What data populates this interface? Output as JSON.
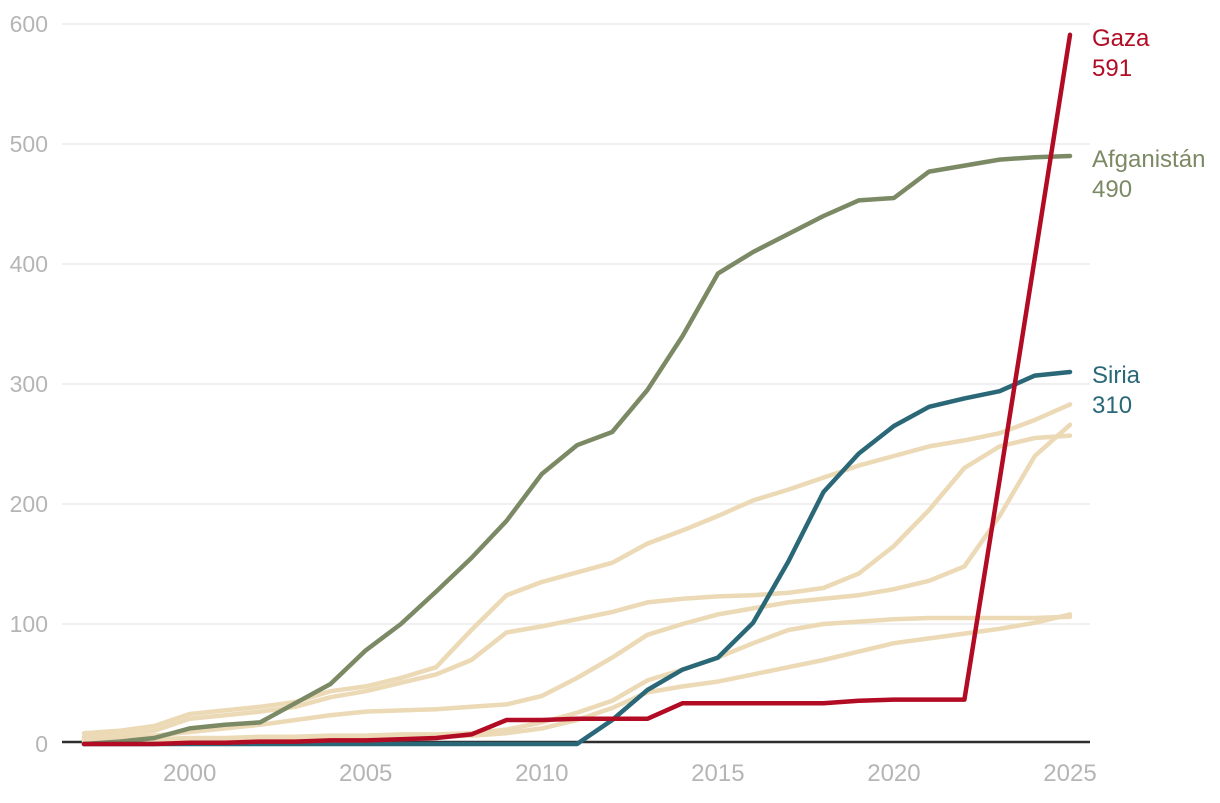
{
  "chart_data": {
    "type": "line",
    "title": "",
    "grid": "horizontal",
    "xlim": [
      1997,
      2025
    ],
    "ylim": [
      0,
      600
    ],
    "xticks": [
      2000,
      2005,
      2010,
      2015,
      2020,
      2025
    ],
    "yticks": [
      0,
      100,
      200,
      300,
      400,
      500,
      600
    ],
    "legend_position": "right-end-of-line",
    "x": [
      1997,
      1998,
      1999,
      2000,
      2001,
      2002,
      2003,
      2004,
      2005,
      2006,
      2007,
      2008,
      2009,
      2010,
      2011,
      2012,
      2013,
      2014,
      2015,
      2016,
      2017,
      2018,
      2019,
      2020,
      2021,
      2022,
      2023,
      2024,
      2025
    ],
    "series": [
      {
        "name": "context-line-1",
        "label": null,
        "color": "#ecd9b5",
        "width": 4.5,
        "values": [
          9,
          11,
          15,
          25,
          28,
          31,
          35,
          44,
          48,
          55,
          64,
          95,
          124,
          135,
          143,
          151,
          167,
          178,
          190,
          203,
          212,
          222,
          232,
          240,
          248,
          253,
          259,
          270,
          283
        ]
      },
      {
        "name": "context-line-2",
        "label": null,
        "color": "#ecd9b5",
        "width": 4.5,
        "values": [
          6,
          8,
          11,
          21,
          24,
          27,
          31,
          39,
          44,
          51,
          58,
          70,
          93,
          98,
          104,
          110,
          118,
          121,
          123,
          124,
          126,
          130,
          142,
          165,
          195,
          230,
          248,
          255,
          257
        ]
      },
      {
        "name": "context-line-3",
        "label": null,
        "color": "#ecd9b5",
        "width": 4.5,
        "values": [
          4,
          5,
          7,
          10,
          13,
          16,
          20,
          24,
          27,
          28,
          29,
          31,
          33,
          40,
          55,
          72,
          91,
          100,
          108,
          113,
          118,
          121,
          124,
          129,
          136,
          148,
          190,
          240,
          266
        ]
      },
      {
        "name": "context-line-4",
        "label": null,
        "color": "#ecd9b5",
        "width": 4.5,
        "values": [
          2,
          3,
          4,
          5,
          5,
          6,
          6,
          7,
          7,
          8,
          8,
          9,
          12,
          18,
          26,
          36,
          53,
          62,
          72,
          84,
          95,
          100,
          102,
          104,
          105,
          105,
          105,
          105,
          106
        ]
      },
      {
        "name": "context-line-5",
        "label": null,
        "color": "#ecd9b5",
        "width": 4.5,
        "values": [
          1,
          2,
          2,
          3,
          3,
          4,
          4,
          5,
          5,
          6,
          6,
          7,
          9,
          13,
          20,
          30,
          43,
          48,
          52,
          58,
          64,
          70,
          77,
          84,
          88,
          92,
          96,
          101,
          108
        ]
      },
      {
        "name": "afganistan",
        "label": "Afganistán",
        "label_value": "490",
        "color": "#7b8a65",
        "width": 4.5,
        "values": [
          0,
          2,
          5,
          13,
          16,
          18,
          34,
          50,
          78,
          100,
          127,
          155,
          186,
          225,
          249,
          260,
          295,
          340,
          392,
          410,
          425,
          440,
          453,
          455,
          477,
          482,
          487,
          489,
          490
        ]
      },
      {
        "name": "siria",
        "label": "Siria",
        "label_value": "310",
        "color": "#2a6878",
        "width": 4.5,
        "values": [
          0,
          0,
          0,
          0,
          0,
          0,
          0,
          0,
          0,
          0,
          0,
          0,
          0,
          0,
          0,
          20,
          45,
          62,
          72,
          101,
          152,
          210,
          242,
          265,
          281,
          288,
          294,
          307,
          310
        ]
      },
      {
        "name": "gaza",
        "label": "Gaza",
        "label_value": "591",
        "color": "#b20b24",
        "width": 4.5,
        "values": [
          0,
          0,
          0,
          1,
          1,
          2,
          2,
          3,
          3,
          4,
          5,
          8,
          20,
          20,
          21,
          21,
          21,
          34,
          34,
          34,
          34,
          34,
          36,
          37,
          37,
          37,
          220,
          405,
          591
        ]
      }
    ]
  },
  "colors": {
    "background": "#ffffff",
    "grid": "#ebebeb",
    "axis": "#2e2e2e",
    "tick_text": "#b5b5b5",
    "context_line": "#ecd9b5",
    "gaza": "#b20b24",
    "afganistan": "#7b8a65",
    "siria": "#2a6878"
  }
}
